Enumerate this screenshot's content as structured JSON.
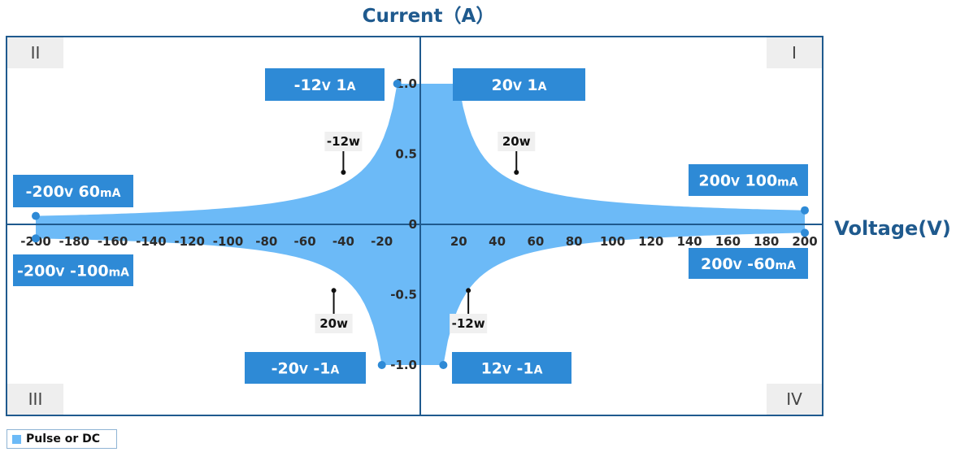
{
  "chart_data": {
    "type": "area",
    "title": "Current（A）",
    "xlabel": "Voltage(V)",
    "xlim": [
      -200,
      200
    ],
    "ylim": [
      -1.0,
      1.0
    ],
    "x_ticks": [
      -200,
      -180,
      -160,
      -140,
      -120,
      -100,
      -80,
      -60,
      -40,
      -20,
      20,
      40,
      60,
      80,
      100,
      120,
      140,
      160,
      180,
      200
    ],
    "y_ticks": [
      {
        "value": 1.0,
        "label": "1.0"
      },
      {
        "value": 0.5,
        "label": "0.5"
      },
      {
        "value": 0,
        "label": "0"
      },
      {
        "value": -0.5,
        "label": "-0.5"
      },
      {
        "value": -1.0,
        "label": "-1.0"
      }
    ],
    "quadrants": [
      "I",
      "II",
      "III",
      "IV"
    ],
    "series": [
      {
        "name": "Pulse or DC",
        "color": "#6cbaf7",
        "corner_points": [
          {
            "x": 20,
            "y": 1.0
          },
          {
            "x": 200,
            "y": 0.1
          },
          {
            "x": 200,
            "y": -0.06
          },
          {
            "x": 12,
            "y": -1.0
          },
          {
            "x": -20,
            "y": -1.0
          },
          {
            "x": -200,
            "y": -0.1
          },
          {
            "x": -200,
            "y": 0.06
          },
          {
            "x": -12,
            "y": 1.0
          }
        ]
      }
    ],
    "operating_limits": [
      {
        "voltage": "20",
        "current": "1",
        "current_unit": "A"
      },
      {
        "voltage": "-12",
        "current": "1",
        "current_unit": "A"
      },
      {
        "voltage": "200",
        "current": "100",
        "current_unit": "mA"
      },
      {
        "voltage": "200",
        "current": "-60",
        "current_unit": "mA"
      },
      {
        "voltage": "-200",
        "current": "60",
        "current_unit": "mA"
      },
      {
        "voltage": "-200",
        "current": "-100",
        "current_unit": "mA"
      },
      {
        "voltage": "-20",
        "current": "-1",
        "current_unit": "A"
      },
      {
        "voltage": "12",
        "current": "-1",
        "current_unit": "A"
      }
    ],
    "voltage_unit": "V",
    "power_limits": [
      {
        "label": "20w",
        "watts": 20,
        "quadrant": "I",
        "x": 50
      },
      {
        "label": "-12w",
        "watts": -12,
        "quadrant": "II",
        "x": -40
      },
      {
        "label": "20w",
        "watts": 20,
        "quadrant": "III",
        "x": -45
      },
      {
        "label": "-12w",
        "watts": -12,
        "quadrant": "IV",
        "x": 25
      }
    ],
    "legend": {
      "label": "Pulse or DC",
      "position": "bottom-left"
    }
  }
}
